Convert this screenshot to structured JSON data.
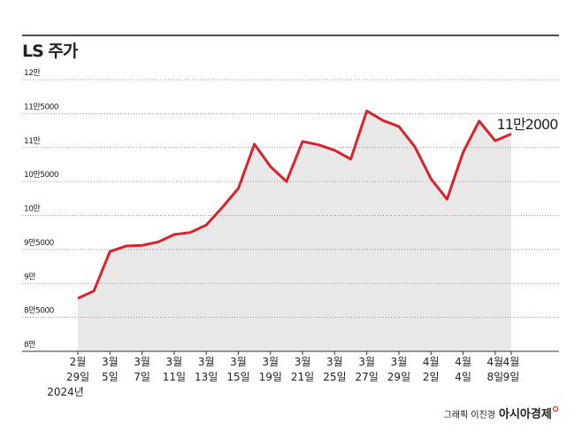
{
  "chart_data": {
    "type": "area_line",
    "title": "LS 주가",
    "categories": [
      "29일",
      null,
      "5일",
      null,
      "7일",
      null,
      "11일",
      null,
      "13일",
      null,
      "15일",
      null,
      "19일",
      null,
      "21일",
      null,
      "25일",
      null,
      "27일",
      null,
      "29일",
      null,
      "2일",
      null,
      "4일",
      null,
      "8일",
      "9일"
    ],
    "category_months": [
      "2월",
      null,
      "3월",
      null,
      "3월",
      null,
      "3월",
      null,
      "3월",
      null,
      "3월",
      null,
      "3월",
      null,
      "3월",
      null,
      "3월",
      null,
      "3월",
      null,
      "3월",
      null,
      "4월",
      null,
      "4월",
      null,
      "4월",
      "4월"
    ],
    "x_year": "2024년",
    "values": [
      87800,
      88900,
      94700,
      95500,
      95600,
      96100,
      97200,
      97500,
      98600,
      101200,
      104000,
      110500,
      107200,
      105000,
      110900,
      110400,
      109600,
      108300,
      115400,
      114000,
      113100,
      110100,
      105400,
      102400,
      109300,
      113900,
      111000,
      112000
    ],
    "color": "#d7242c",
    "area_color": "#e8e8e9",
    "ylim": [
      80000,
      120000
    ],
    "yticks": [
      {
        "value": 80000,
        "label": "8만"
      },
      {
        "value": 85000,
        "label": "8만5000"
      },
      {
        "value": 90000,
        "label": "9만"
      },
      {
        "value": 95000,
        "label": "9만5000"
      },
      {
        "value": 100000,
        "label": "10만"
      },
      {
        "value": 105000,
        "label": "10만5000"
      },
      {
        "value": 110000,
        "label": "11만"
      },
      {
        "value": 115000,
        "label": "11만5000"
      },
      {
        "value": 120000,
        "label": "12만"
      }
    ],
    "grid": true,
    "annotation": "11만2000",
    "credit": "그래픽 이진경",
    "source": "아시아경제"
  }
}
